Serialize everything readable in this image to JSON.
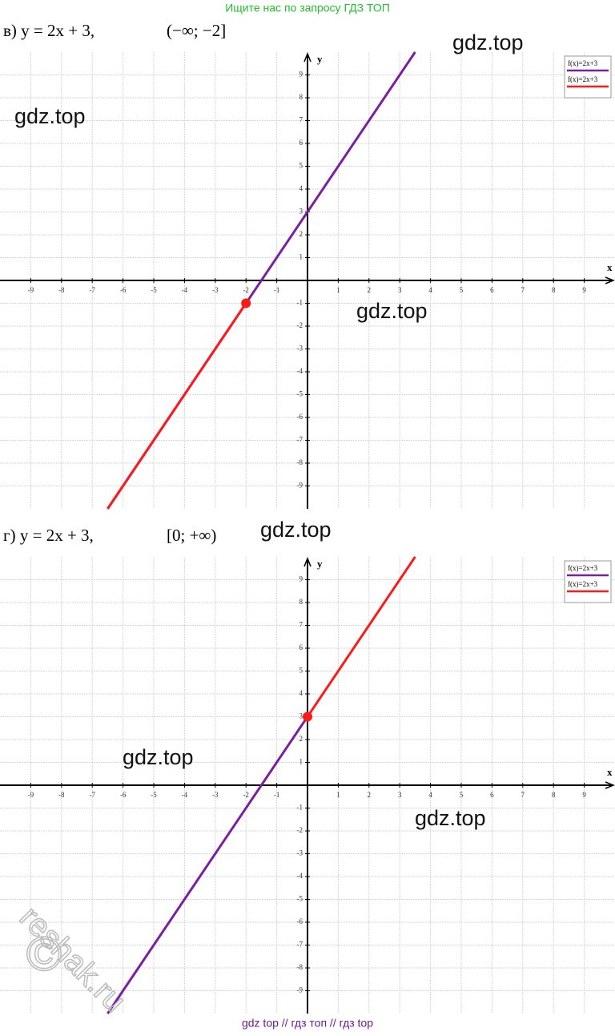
{
  "header": "Ищите нас по запросу ГДЗ ТОП",
  "footer": "gdz top  //  гдз топ  //  гдз top",
  "watermarks": [
    "gdz.top",
    "gdz.top",
    "gdz.top",
    "gdz.top",
    "gdz.top",
    "gdz.top",
    "reshak.ru",
    "©"
  ],
  "chart_data": [
    {
      "type": "line",
      "title": "в) y = 2x + 3,",
      "subtitle": "(−∞; −2]",
      "x_label": "x",
      "y_label": "y",
      "xlim": [
        -10,
        10
      ],
      "ylim": [
        -10,
        10
      ],
      "xticks": [
        -9,
        -8,
        -7,
        -6,
        -5,
        -4,
        -3,
        -2,
        -1,
        1,
        2,
        3,
        4,
        5,
        6,
        7,
        8,
        9
      ],
      "yticks": [
        -9,
        -8,
        -7,
        -6,
        -5,
        -4,
        -3,
        -2,
        -1,
        1,
        2,
        3,
        4,
        5,
        6,
        7,
        8,
        9
      ],
      "grid": true,
      "legend": "top-right",
      "series": [
        {
          "name": "f(x)=2x+3",
          "color": "#7b1fa2",
          "x": [
            -6.5,
            3.5
          ],
          "values": [
            -10,
            10
          ]
        },
        {
          "name": "f(x)=2x+3",
          "color": "#ff1a1a",
          "x": [
            -6.5,
            -2
          ],
          "values": [
            -10,
            -1
          ]
        }
      ],
      "points": [
        {
          "x": -2,
          "y": -1,
          "color": "#ff1a1a"
        }
      ]
    },
    {
      "type": "line",
      "title": "г) y = 2x + 3,",
      "subtitle": "[0; +∞)",
      "x_label": "x",
      "y_label": "y",
      "xlim": [
        -10,
        10
      ],
      "ylim": [
        -10,
        10
      ],
      "xticks": [
        -9,
        -8,
        -7,
        -6,
        -5,
        -4,
        -3,
        -2,
        -1,
        1,
        2,
        3,
        4,
        5,
        6,
        7,
        8,
        9
      ],
      "yticks": [
        -9,
        -8,
        -7,
        -6,
        -5,
        -4,
        -3,
        -2,
        -1,
        1,
        2,
        3,
        4,
        5,
        6,
        7,
        8,
        9
      ],
      "grid": true,
      "legend": "top-right",
      "series": [
        {
          "name": "f(x)=2x+3",
          "color": "#7b1fa2",
          "x": [
            -6.5,
            0
          ],
          "values": [
            -10,
            3
          ]
        },
        {
          "name": "f(x)=2x+3",
          "color": "#ff1a1a",
          "x": [
            0,
            3.5
          ],
          "values": [
            3,
            10
          ]
        }
      ],
      "points": [
        {
          "x": 0,
          "y": 3,
          "color": "#ff1a1a"
        }
      ]
    }
  ]
}
